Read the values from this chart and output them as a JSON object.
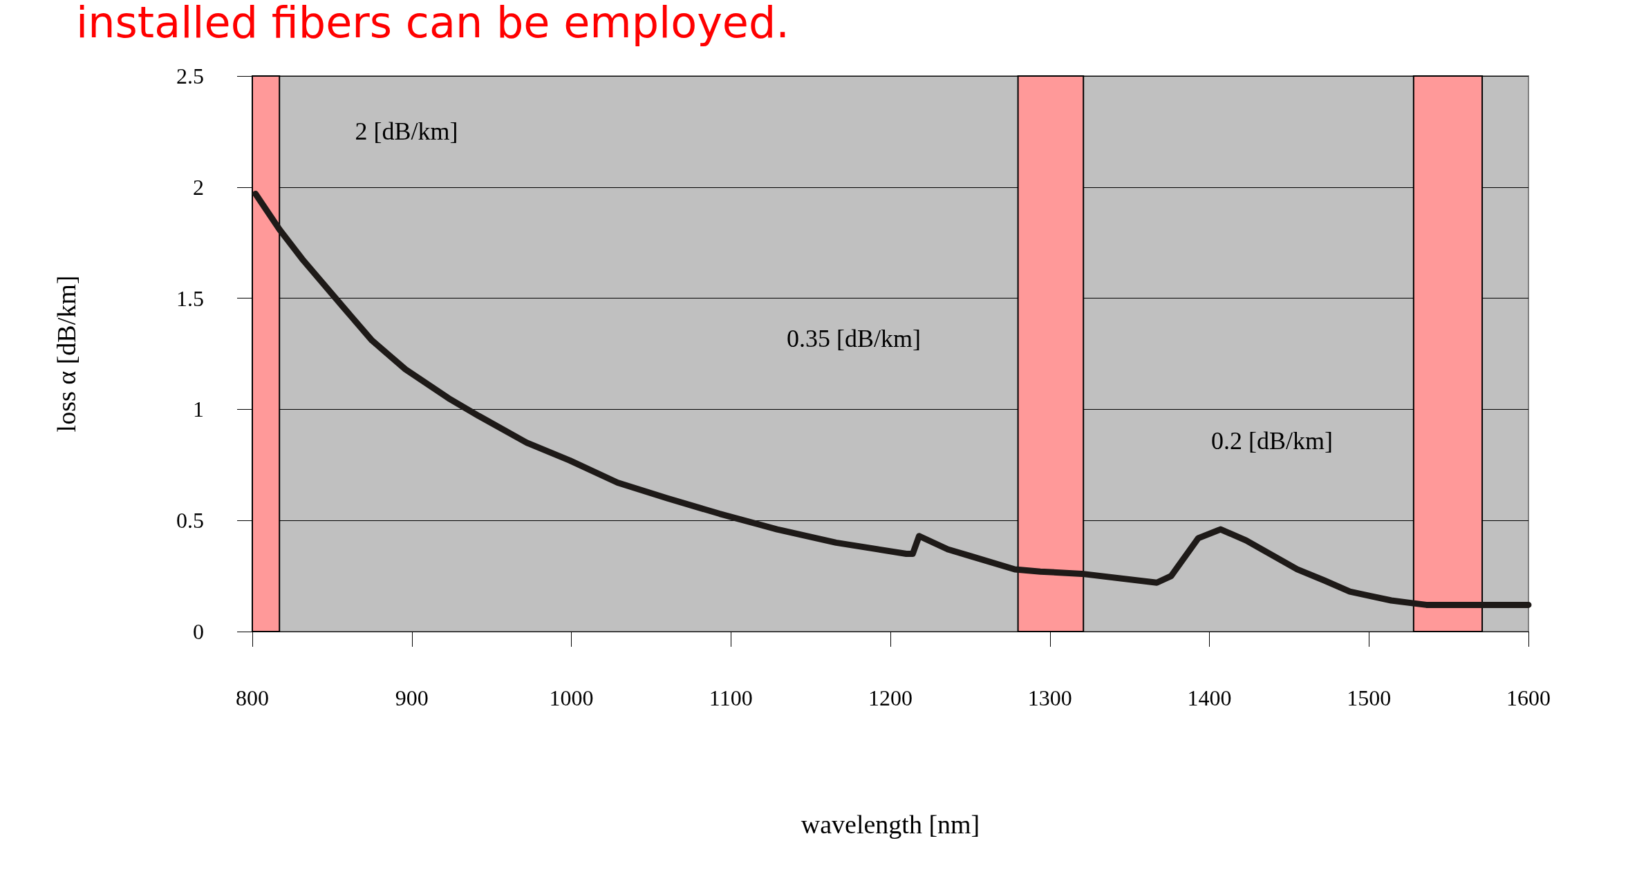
{
  "chart_data": {
    "type": "line",
    "title": "installed fibers can be employed.",
    "xlabel": "wavelength [nm]",
    "ylabel": "loss α [dB/km]",
    "x": [
      802,
      817,
      832,
      857,
      875,
      896,
      923,
      942,
      972,
      999,
      1029,
      1060,
      1093,
      1129,
      1166,
      1210,
      1214,
      1218,
      1236,
      1250,
      1278,
      1294,
      1320,
      1367,
      1376,
      1393,
      1407,
      1423,
      1455,
      1472,
      1488,
      1501,
      1514,
      1536,
      1551,
      1600
    ],
    "series": [
      {
        "color": "#1e1a18",
        "values": [
          1.97,
          1.81,
          1.67,
          1.46,
          1.31,
          1.18,
          1.05,
          0.97,
          0.85,
          0.77,
          0.67,
          0.6,
          0.53,
          0.46,
          0.4,
          0.35,
          0.35,
          0.43,
          0.37,
          0.34,
          0.28,
          0.27,
          0.26,
          0.22,
          0.25,
          0.42,
          0.46,
          0.41,
          0.28,
          0.23,
          0.18,
          0.16,
          0.14,
          0.12,
          0.12,
          0.12
        ]
      }
    ],
    "xlim": [
      800,
      1600
    ],
    "ylim": [
      0,
      2.5
    ],
    "xticks": [
      800,
      900,
      1000,
      1100,
      1200,
      1300,
      1400,
      1500,
      1600
    ],
    "yticks": [
      0,
      0.5,
      1,
      1.5,
      2,
      2.5
    ],
    "grid": "y",
    "marker": "none",
    "line_style": "solid",
    "bands": [
      {
        "axis": "x",
        "from": 800,
        "to": 817,
        "color": "#ff9999"
      },
      {
        "axis": "x",
        "from": 1280,
        "to": 1321,
        "color": "#ff9999"
      },
      {
        "axis": "x",
        "from": 1528,
        "to": 1571,
        "color": "#ff9999"
      }
    ],
    "annotations": [
      "2 [dB/km]",
      "0.35 [dB/km]",
      "0.2 [dB/km]"
    ]
  }
}
